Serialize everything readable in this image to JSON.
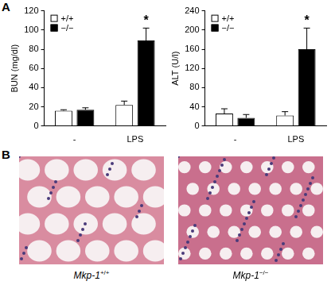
{
  "chart_data": [
    {
      "type": "bar",
      "y_label": "BUN (mg/dl)",
      "categories": [
        "-",
        "LPS"
      ],
      "series": [
        {
          "name": "+/+",
          "color": "#ffffff",
          "values": [
            16,
            22
          ],
          "errors": [
            1,
            4
          ]
        },
        {
          "name": "−/−",
          "color": "#000000",
          "values": [
            17,
            89
          ],
          "errors": [
            2,
            13
          ]
        }
      ],
      "ylim": [
        0,
        120
      ],
      "yticks": [
        0,
        20,
        40,
        60,
        80,
        100,
        120
      ],
      "grid": false,
      "legend": "upper left",
      "annotations": [
        {
          "text": "*",
          "category": "LPS",
          "series": "−/−"
        }
      ]
    },
    {
      "type": "bar",
      "y_label": "ALT (U/l)",
      "categories": [
        "-",
        "LPS"
      ],
      "series": [
        {
          "name": "+/+",
          "color": "#ffffff",
          "values": [
            26,
            22
          ],
          "errors": [
            10,
            8
          ]
        },
        {
          "name": "−/−",
          "color": "#000000",
          "values": [
            17,
            160
          ],
          "errors": [
            7,
            44
          ]
        }
      ],
      "ylim": [
        0,
        240
      ],
      "yticks": [
        0,
        40,
        80,
        120,
        160,
        200,
        240
      ],
      "grid": false,
      "legend": "upper left",
      "annotations": [
        {
          "text": "*",
          "category": "LPS",
          "series": "−/−"
        }
      ]
    }
  ],
  "panel_labels": [
    "A",
    "B"
  ],
  "images": [
    {
      "caption": "Mkp-1",
      "caption_superscript": "+/+"
    },
    {
      "caption": "Mkp-1",
      "caption_superscript": "−/−"
    }
  ]
}
